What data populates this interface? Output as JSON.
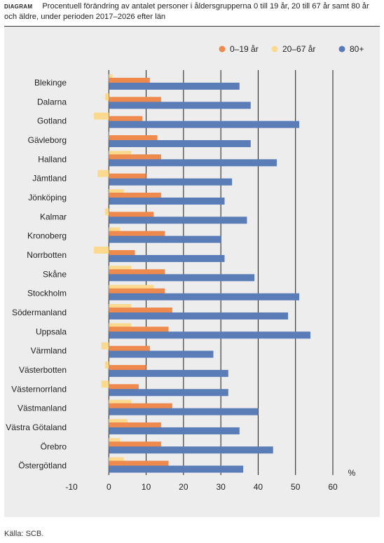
{
  "header": {
    "tag": "DIAGRAM",
    "title": "Procentuell förändring av antalet personer i åldersgrupperna 0 till 19 år, 20 till 67 år samt 80 år och äldre, under perioden 2017–2026 efter län"
  },
  "source": "Källa: SCB.",
  "colors": {
    "s0": "#ee8a4e",
    "s1": "#fbd98e",
    "s2": "#5a7db8",
    "background": "#ededed",
    "gridline": "#1a1a1a"
  },
  "chart_data": {
    "type": "bar",
    "orientation": "horizontal",
    "title": "Procentuell förändring av antalet personer i åldersgrupperna 0 till 19 år, 20 till 67 år samt 80 år och äldre, under perioden 2017–2026 efter län",
    "xlabel": "%",
    "ylabel": "",
    "xlim": [
      -10,
      60
    ],
    "xticks": [
      -10,
      0,
      10,
      20,
      30,
      40,
      50,
      60
    ],
    "grid": true,
    "legend_position": "top-right",
    "categories": [
      "Blekinge",
      "Dalarna",
      "Gotland",
      "Gävleborg",
      "Halland",
      "Jämtland",
      "Jönköping",
      "Kalmar",
      "Kronoberg",
      "Norrbotten",
      "Skåne",
      "Stockholm",
      "Södermanland",
      "Uppsala",
      "Värmland",
      "Västerbotten",
      "Västernorrland",
      "Västmanland",
      "Västra Götaland",
      "Örebro",
      "Östergötland"
    ],
    "series": [
      {
        "name": "0–19 år",
        "values": [
          11,
          14,
          9,
          13,
          14,
          10,
          14,
          12,
          15,
          7,
          15,
          15,
          17,
          16,
          11,
          10,
          8,
          17,
          14,
          14,
          16
        ]
      },
      {
        "name": "20–67 år",
        "values": [
          1,
          -1,
          -4,
          0,
          6,
          -3,
          4,
          -1,
          3,
          -4,
          6,
          12,
          6,
          6,
          -2,
          -1,
          -2,
          6,
          5,
          3,
          4
        ]
      },
      {
        "name": "80+",
        "values": [
          35,
          38,
          51,
          38,
          45,
          33,
          31,
          37,
          30,
          31,
          39,
          51,
          48,
          54,
          28,
          32,
          32,
          40,
          35,
          44,
          36
        ]
      }
    ]
  }
}
